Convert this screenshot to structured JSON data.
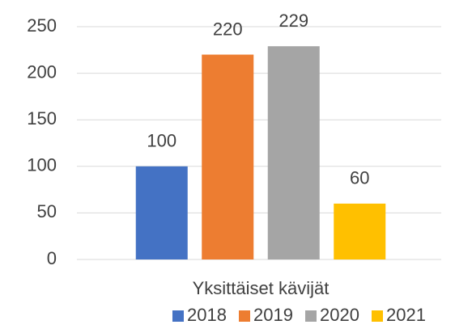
{
  "chart_data": {
    "type": "bar",
    "categories": [
      "Yksittäiset kävijät"
    ],
    "series": [
      {
        "name": "2018",
        "color": "#4472c4",
        "values": [
          100
        ]
      },
      {
        "name": "2019",
        "color": "#ed7d31",
        "values": [
          220
        ]
      },
      {
        "name": "2020",
        "color": "#a5a5a5",
        "values": [
          229
        ]
      },
      {
        "name": "2021",
        "color": "#ffc000",
        "values": [
          60
        ]
      }
    ],
    "ylim": [
      0,
      250
    ],
    "yticks": [
      0,
      50,
      100,
      150,
      200,
      250
    ],
    "grid": true,
    "legend": "bottom"
  }
}
